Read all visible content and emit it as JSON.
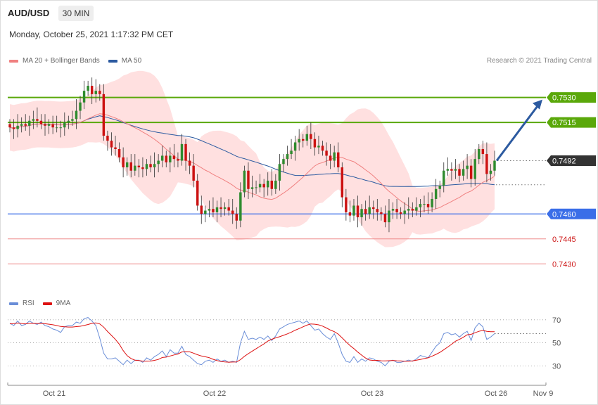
{
  "header": {
    "symbol": "AUD/USD",
    "timeframe": "30 MIN",
    "datetime": "Monday, October 25, 2021 1:17:32 PM CET"
  },
  "legend": {
    "ma20_bollinger": "MA 20 + Bollinger Bands",
    "ma50": "MA 50",
    "rsi": "RSI",
    "rsi_ma": "9MA"
  },
  "credit": "Research © 2021 Trading Central",
  "colors": {
    "up_candle": "#2e8b2e",
    "down_candle": "#cc1111",
    "resistance": "#5aa80a",
    "support": "#3a6ee8",
    "support_secondary": "#ee8888",
    "current_price": "#333333",
    "ma20": "#f08080",
    "ma50": "#2c5aa0",
    "bollinger_fill": "#ffe0e0",
    "rsi": "#6a8ed8",
    "rsi_ma": "#dd1111",
    "arrow": "#2c5aa0"
  },
  "chart_data": [
    {
      "type": "candlestick",
      "title": "AUD/USD",
      "timeframe": "30 MIN",
      "x_tick_labels": [
        "Oct 21",
        "Oct 22",
        "Oct 23",
        "Oct 26",
        "Nov 9"
      ],
      "ylim": [
        0.7428,
        0.7548
      ],
      "levels": [
        {
          "value": 0.753,
          "label": "0.7530",
          "kind": "resistance"
        },
        {
          "value": 0.7515,
          "label": "0.7515",
          "kind": "resistance"
        },
        {
          "value": 0.7492,
          "label": "0.7492",
          "kind": "current_price"
        },
        {
          "value": 0.746,
          "label": "0.7460",
          "kind": "support"
        },
        {
          "value": 0.7445,
          "label": "0.7445",
          "kind": "support_secondary"
        },
        {
          "value": 0.743,
          "label": "0.7430",
          "kind": "support_secondary"
        }
      ],
      "close": [
        0.7512,
        0.7511,
        0.7513,
        0.7514,
        0.7513,
        0.7516,
        0.7517,
        0.7516,
        0.7514,
        0.7513,
        0.7514,
        0.7512,
        0.7512,
        0.7512,
        0.7515,
        0.7516,
        0.7517,
        0.7522,
        0.7527,
        0.7534,
        0.7537,
        0.7532,
        0.7534,
        0.7532,
        0.7507,
        0.7504,
        0.75,
        0.7499,
        0.7494,
        0.7488,
        0.7491,
        0.7486,
        0.7489,
        0.7488,
        0.7487,
        0.749,
        0.7488,
        0.749,
        0.7492,
        0.7495,
        0.7491,
        0.7495,
        0.7493,
        0.7492,
        0.7502,
        0.7492,
        0.7489,
        0.748,
        0.7465,
        0.746,
        0.7462,
        0.7463,
        0.7461,
        0.7464,
        0.7463,
        0.7464,
        0.7462,
        0.746,
        0.7456,
        0.7473,
        0.7486,
        0.7475,
        0.7476,
        0.7476,
        0.7478,
        0.7476,
        0.748,
        0.7475,
        0.748,
        0.749,
        0.7493,
        0.7496,
        0.7498,
        0.7503,
        0.7505,
        0.7504,
        0.7508,
        0.7505,
        0.75,
        0.7501,
        0.7498,
        0.7495,
        0.7492,
        0.7497,
        0.7488,
        0.747,
        0.7461,
        0.7459,
        0.7465,
        0.7458,
        0.7463,
        0.746,
        0.7464,
        0.7463,
        0.7461,
        0.746,
        0.7455,
        0.7462,
        0.7463,
        0.7461,
        0.746,
        0.7462,
        0.7463,
        0.7462,
        0.7464,
        0.7466,
        0.7466,
        0.7464,
        0.7469,
        0.7475,
        0.7477,
        0.7486,
        0.7487,
        0.7486,
        0.7487,
        0.7483,
        0.7487,
        0.7489,
        0.7481,
        0.7493,
        0.7499,
        0.7496,
        0.7484,
        0.7486,
        0.7492
      ]
    },
    {
      "type": "line",
      "name": "RSI",
      "ma_name": "9MA",
      "y_tick_labels": [
        "70",
        "50",
        "30"
      ],
      "yticks": [
        70,
        50,
        30
      ],
      "ylim": [
        18,
        76
      ],
      "values": [
        67,
        65,
        69,
        65,
        66,
        69,
        67,
        66,
        68,
        65,
        64,
        62,
        61,
        59,
        64,
        65,
        65,
        68,
        67,
        71,
        72,
        69,
        65,
        54,
        41,
        36,
        36,
        37,
        34,
        31,
        35,
        32,
        35,
        35,
        33,
        37,
        35,
        38,
        40,
        43,
        38,
        44,
        41,
        41,
        47,
        40,
        38,
        35,
        32,
        31,
        34,
        35,
        33,
        36,
        34,
        35,
        33,
        34,
        33,
        50,
        60,
        53,
        54,
        53,
        55,
        53,
        56,
        52,
        56,
        62,
        64,
        66,
        67,
        68,
        69,
        67,
        69,
        65,
        61,
        62,
        58,
        55,
        53,
        58,
        50,
        40,
        34,
        33,
        38,
        33,
        36,
        34,
        37,
        36,
        34,
        33,
        30,
        34,
        35,
        33,
        33,
        34,
        35,
        34,
        36,
        39,
        38,
        37,
        42,
        47,
        50,
        58,
        59,
        57,
        58,
        55,
        58,
        60,
        52,
        63,
        67,
        64,
        53,
        55,
        58
      ],
      "ma_values": [
        66.5,
        66.7,
        67.2,
        66.8,
        66.5,
        66.9,
        67.0,
        66.7,
        66.9,
        66.6,
        66.2,
        65.7,
        65.0,
        64.2,
        63.9,
        63.7,
        63.7,
        64.1,
        64.4,
        65.1,
        65.9,
        66.9,
        67.3,
        66.4,
        63.6,
        59.8,
        56.4,
        53.0,
        48.8,
        43.3,
        38.9,
        36.4,
        35.0,
        34.6,
        34.1,
        34.1,
        34.2,
        34.8,
        35.6,
        37.3,
        37.6,
        38.6,
        39.5,
        40.3,
        42.1,
        42.3,
        42.2,
        41.0,
        39.7,
        38.6,
        37.9,
        37.1,
        35.7,
        34.6,
        33.8,
        33.4,
        33.2,
        33.3,
        33.4,
        35.4,
        38.3,
        40.6,
        42.8,
        44.9,
        47.0,
        49.1,
        51.5,
        53.1,
        54.3,
        55.3,
        56.5,
        57.8,
        59.3,
        61.0,
        62.4,
        63.9,
        65.4,
        66.4,
        66.2,
        65.6,
        64.5,
        62.9,
        61.1,
        59.7,
        57.6,
        54.3,
        50.9,
        47.7,
        45.0,
        42.0,
        39.3,
        36.8,
        35.1,
        34.7,
        34.8,
        34.4,
        34.3,
        34.5,
        34.7,
        34.4,
        34.3,
        34.0,
        34.0,
        34.3,
        34.9,
        35.6,
        36.3,
        37.0,
        38.4,
        40.0,
        41.7,
        44.0,
        46.3,
        48.8,
        51.4,
        53.0,
        54.8,
        57.0,
        57.4,
        58.8,
        60.0,
        60.8,
        60.0,
        59.7,
        59.7
      ]
    }
  ]
}
